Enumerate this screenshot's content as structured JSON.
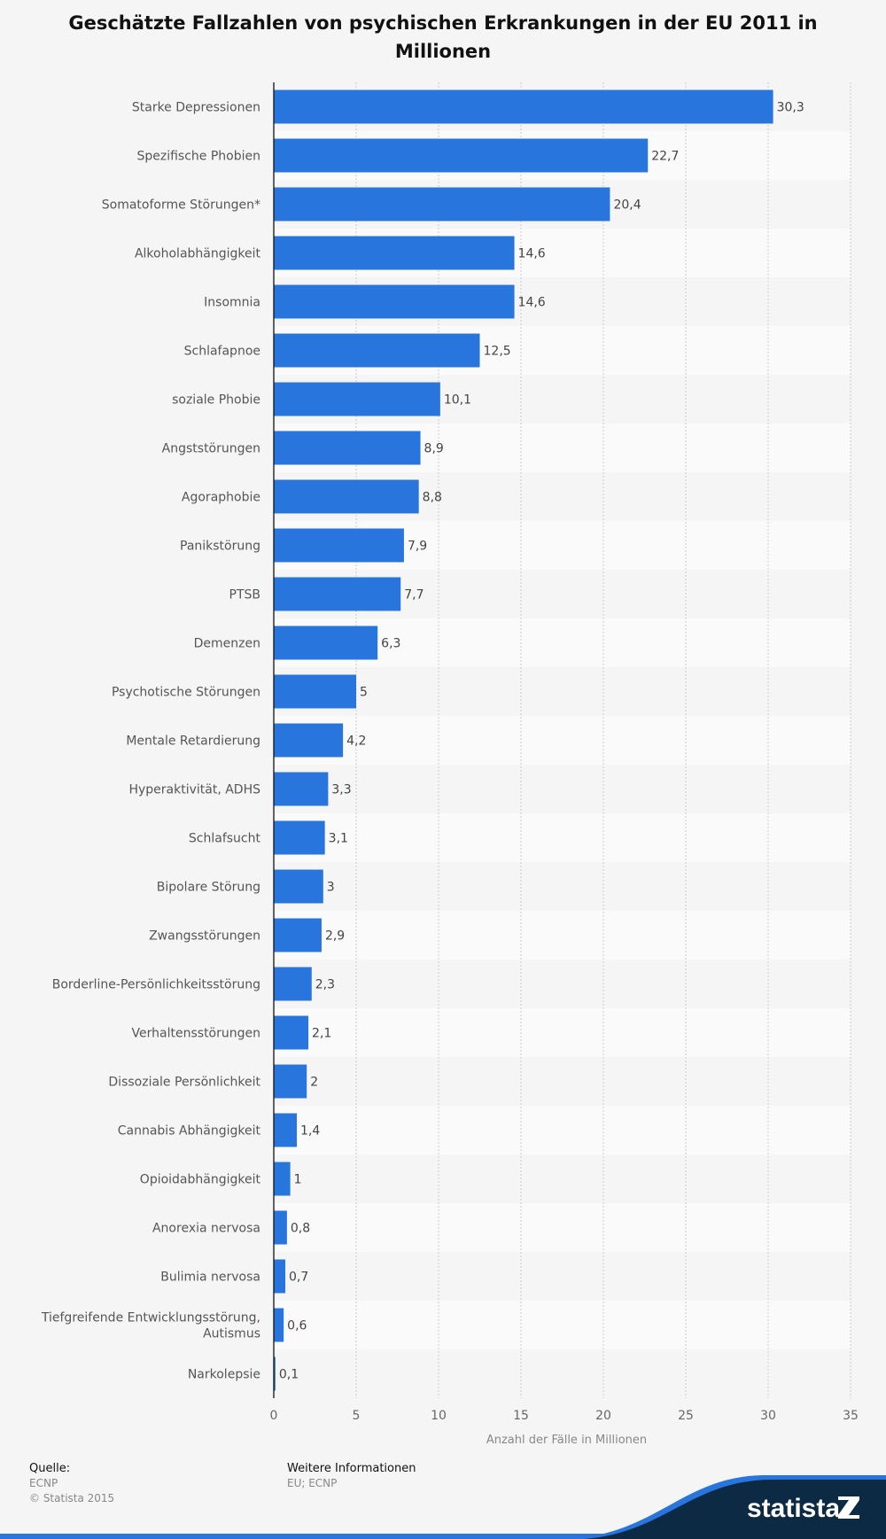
{
  "chart_data": {
    "type": "bar",
    "orientation": "horizontal",
    "title": "Geschätzte Fallzahlen von psychischen Erkrankungen in der EU 2011 in Millionen",
    "xlabel": "Anzahl der Fälle in Millionen",
    "ylabel": "",
    "xlim": [
      0,
      35
    ],
    "xticks": [
      0,
      5,
      10,
      15,
      20,
      25,
      30,
      35
    ],
    "grid": true,
    "bar_color": "#2876dd",
    "categories": [
      "Starke Depressionen",
      "Spezifische Phobien",
      "Somatoforme Störungen*",
      "Alkoholabhängigkeit",
      "Insomnia",
      "Schlafapnoe",
      "soziale Phobie",
      "Angststörungen",
      "Agoraphobie",
      "Panikstörung",
      "PTSB",
      "Demenzen",
      "Psychotische Störungen",
      "Mentale Retardierung",
      "Hyperaktivität, ADHS",
      "Schlafsucht",
      "Bipolare Störung",
      "Zwangsstörungen",
      "Borderline-Persönlichkeitsstörung",
      "Verhaltensstörungen",
      "Dissoziale Persönlichkeit",
      "Cannabis Abhängigkeit",
      "Opioidabhängigkeit",
      "Anorexia nervosa",
      "Bulimia nervosa",
      "Tiefgreifende Entwicklungsstörung, Autismus",
      "Narkolepsie"
    ],
    "values": [
      30.3,
      22.7,
      20.4,
      14.6,
      14.6,
      12.5,
      10.1,
      8.9,
      8.8,
      7.9,
      7.7,
      6.3,
      5,
      4.2,
      3.3,
      3.1,
      3,
      2.9,
      2.3,
      2.1,
      2,
      1.4,
      1,
      0.8,
      0.7,
      0.6,
      0.1
    ],
    "value_labels": [
      "30,3",
      "22,7",
      "20,4",
      "14,6",
      "14,6",
      "12,5",
      "10,1",
      "8,9",
      "8,8",
      "7,9",
      "7,7",
      "6,3",
      "5",
      "4,2",
      "3,3",
      "3,1",
      "3",
      "2,9",
      "2,3",
      "2,1",
      "2",
      "1,4",
      "1",
      "0,8",
      "0,7",
      "0,6",
      "0,1"
    ]
  },
  "footer": {
    "source_heading": "Quelle:",
    "source": "ECNP",
    "copyright": "© Statista 2015",
    "info_heading": "Weitere Informationen",
    "info": "EU; ECNP"
  },
  "logo": {
    "text": "statista",
    "colors": {
      "navy": "#0d2a44",
      "blue": "#2876dd"
    }
  }
}
